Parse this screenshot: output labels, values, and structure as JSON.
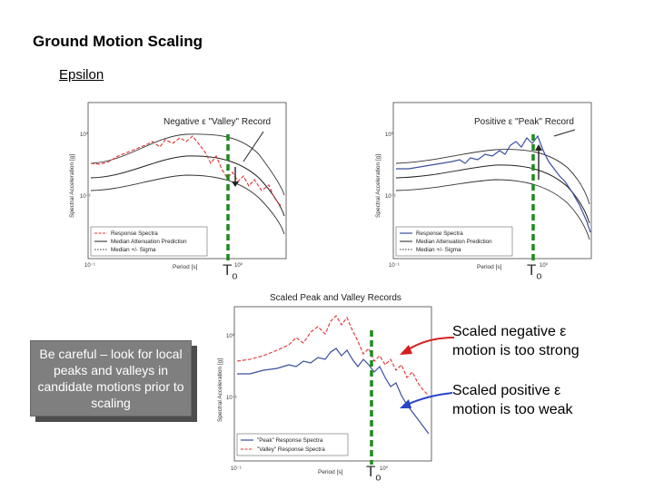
{
  "slide": {
    "title": "Ground Motion Scaling",
    "subtitle": "Epsilon"
  },
  "note": {
    "text": "Be careful – look for local peaks and valleys in candidate motions prior to scaling"
  },
  "callouts": {
    "negative": {
      "line1": "Scaled negative ε",
      "line2": "motion is too strong",
      "arrow_color": "#d42020"
    },
    "positive": {
      "line1": "Scaled positive ε",
      "line2": "motion is too weak",
      "arrow_color": "#2a44c8"
    }
  },
  "to_label": {
    "main": "T",
    "sub": "o"
  },
  "plot_left": {
    "title": "Negative ε \"Valley\" Record",
    "ylabel": "Spectral Acceleration [g]",
    "xlabel": "Period [s]",
    "legend": [
      "Response Spectra",
      "Median Attenuation Prediction",
      "Median +/- Sigma"
    ],
    "ticks": {
      "y1": "10⁰",
      "y2": "10⁻¹",
      "x1": "10⁻¹",
      "x2": "10⁰"
    }
  },
  "plot_right": {
    "title": "Positive ε \"Peak\" Record",
    "ylabel": "Spectral Acceleration [g]",
    "xlabel": "Period [s]",
    "legend": [
      "Response Spectra",
      "Median Attenuation Prediction",
      "Median +/- Sigma"
    ],
    "ticks": {
      "y1": "10⁰",
      "y2": "10⁻¹",
      "x1": "10⁻¹",
      "x2": "10⁰"
    }
  },
  "plot_bottom": {
    "title": "Scaled Peak and Valley Records",
    "ylabel": "Spectral Acceleration [g]",
    "xlabel": "Period [s]",
    "legend": [
      "\"Peak\" Response Spectra",
      "\"Valley\" Response Spectra"
    ],
    "ticks": {
      "y1": "10⁰",
      "y2": "10⁻¹",
      "x1": "10⁻¹",
      "x2": "10⁰"
    }
  },
  "colors": {
    "red_series": "#e03030",
    "blue_series": "#3a4fa0",
    "marker": "#1f8a1f",
    "note_bg": "#7f7f7f"
  }
}
